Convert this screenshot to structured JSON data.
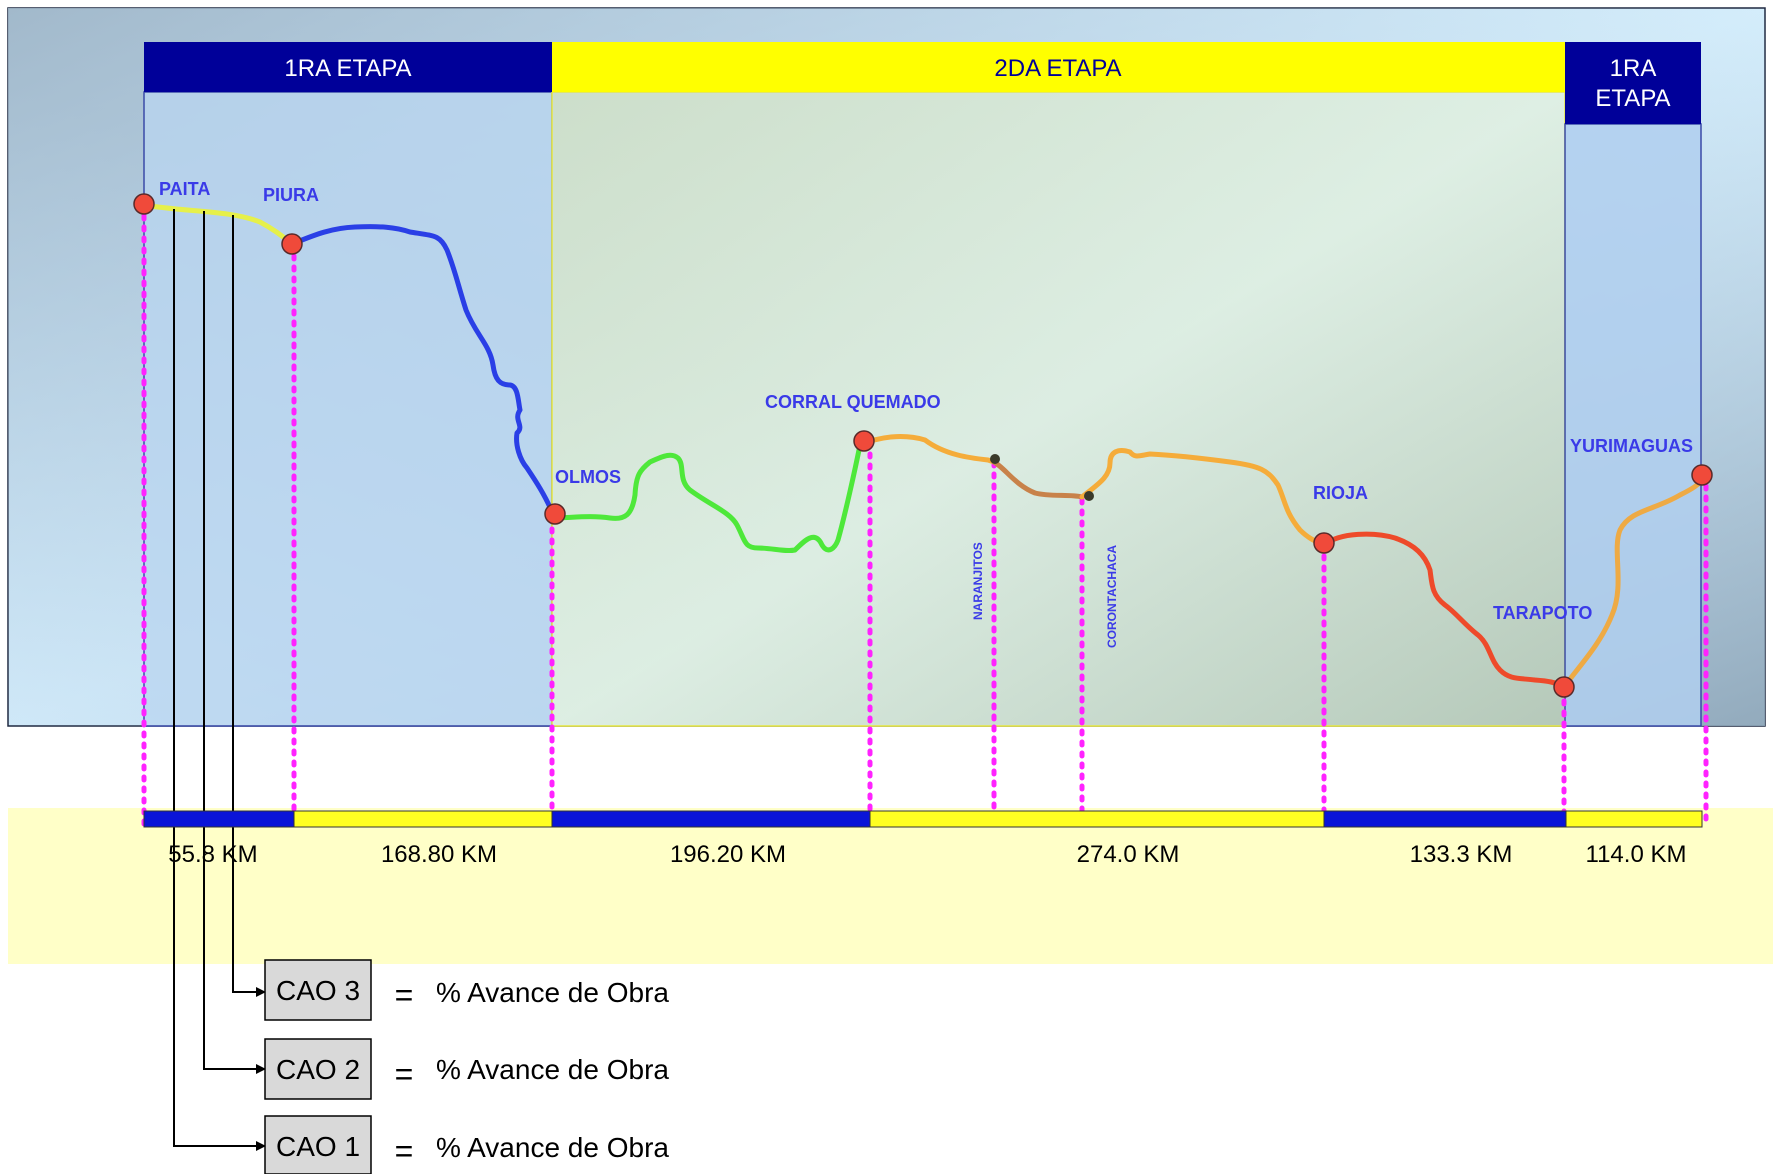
{
  "stages": [
    {
      "lines": [
        "1RA ETAPA"
      ],
      "color": "#000099"
    },
    {
      "lines": [
        "2DA ETAPA"
      ],
      "color": "#ffff00"
    },
    {
      "lines": [
        "1RA",
        "ETAPA"
      ],
      "color": "#000099"
    }
  ],
  "cities": [
    {
      "id": "paita",
      "label": "PAITA"
    },
    {
      "id": "piura",
      "label": "PIURA"
    },
    {
      "id": "olmos",
      "label": "OLMOS"
    },
    {
      "id": "corral",
      "label": "CORRAL QUEMADO"
    },
    {
      "id": "rioja",
      "label": "RIOJA"
    },
    {
      "id": "tarapoto",
      "label": "TARAPOTO"
    },
    {
      "id": "yurimaguas",
      "label": "YURIMAGUAS"
    }
  ],
  "minor_points": [
    {
      "id": "naranjitos",
      "label": "NARANJITOS"
    },
    {
      "id": "corontachaca",
      "label": "CORONTACHACA"
    }
  ],
  "route_colors": {
    "paita_piura": "#e6f04a",
    "piura_olmos": "#2a3fe6",
    "olmos_corral": "#4ee83a",
    "corral_naranjitos": "#f5ac3a",
    "naranjitos_corontachaca": "#c8824a",
    "corontachaca_rioja": "#f5ac3a",
    "rioja_tarapoto": "#ee4a2a",
    "tarapoto_yurimaguas": "#eeaa44"
  },
  "distance_bar_colors": [
    "#0a14d8",
    "#ffff22",
    "#0a14d8",
    "#ffff22",
    "#0a14d8",
    "#ffff22"
  ],
  "distances": [
    "55.8 KM",
    "168.80 KM",
    "196.20 KM",
    "274.0 KM",
    "133.3 KM",
    "114.0 KM"
  ],
  "cao": [
    {
      "box": "CAO 3",
      "equals": "=",
      "text": "% Avance de Obra"
    },
    {
      "box": "CAO 2",
      "equals": "=",
      "text": "% Avance de Obra"
    },
    {
      "box": "CAO 1",
      "equals": "=",
      "text": "% Avance de Obra"
    }
  ]
}
